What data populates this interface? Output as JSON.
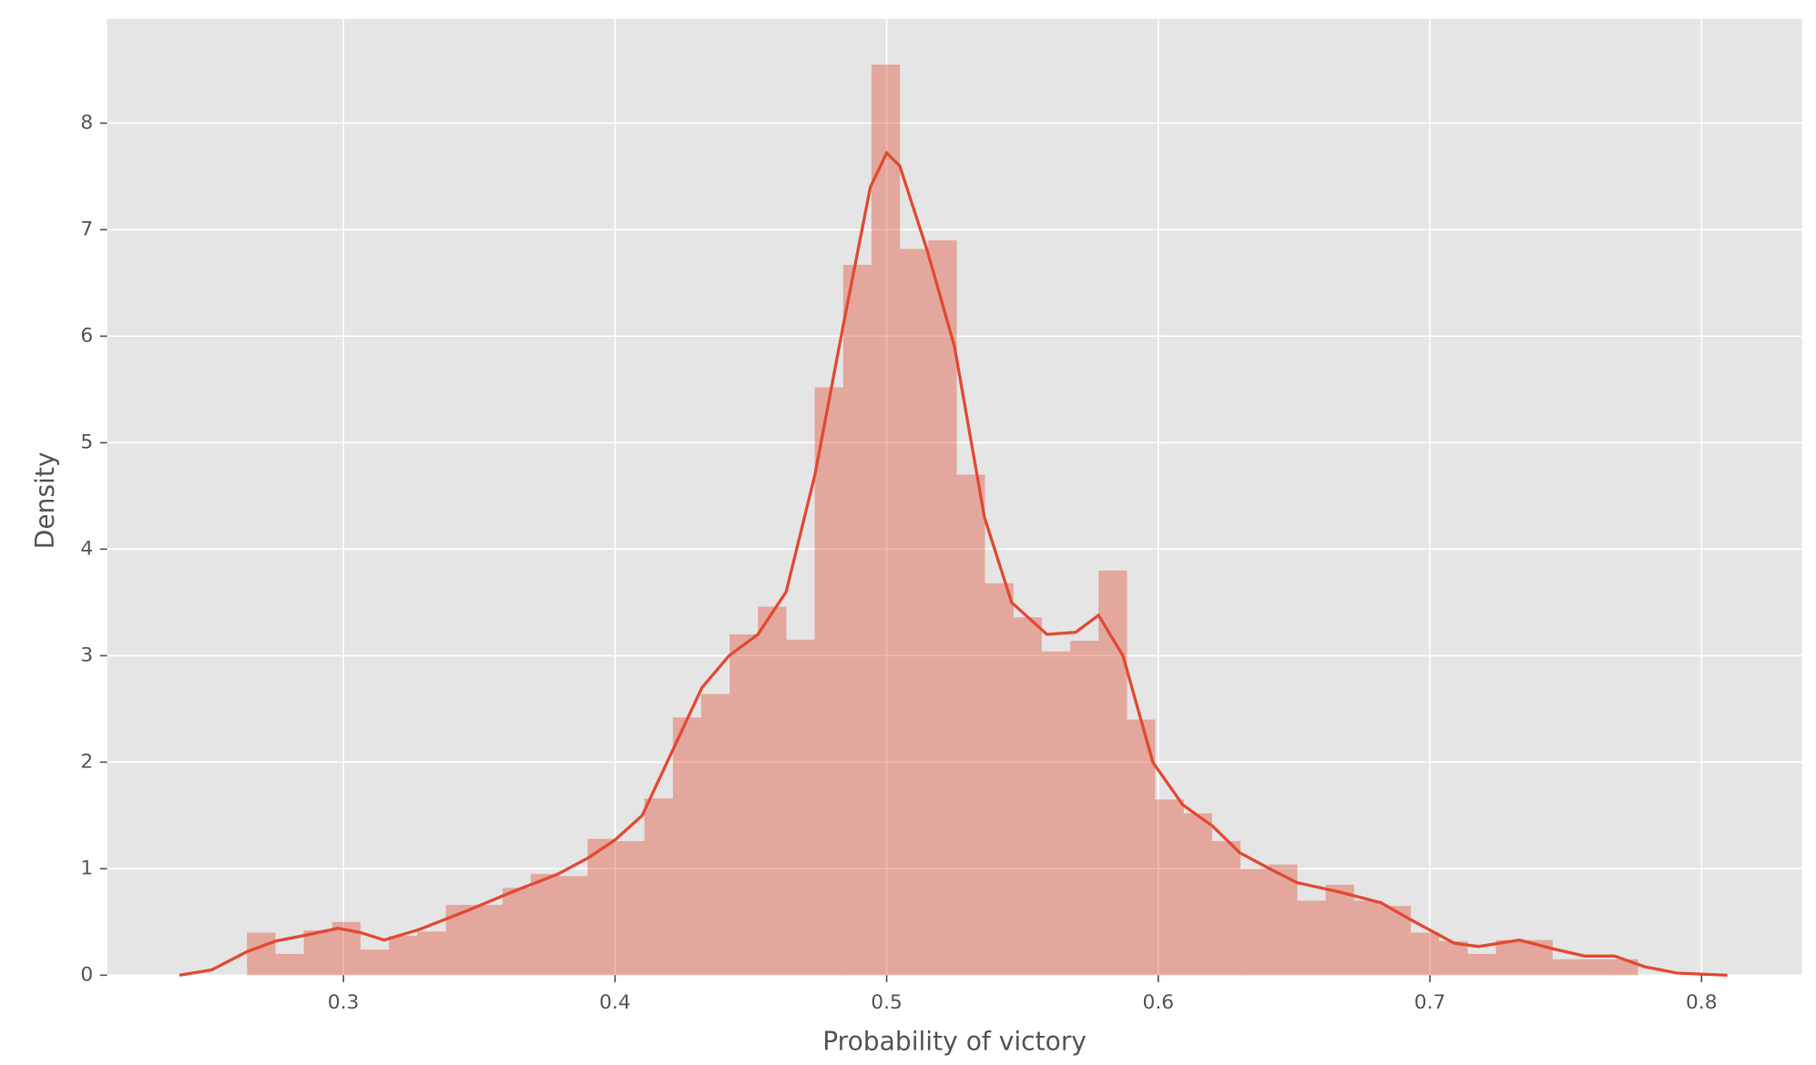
{
  "chart_data": {
    "type": "histogram",
    "xlabel": "Probability of victory",
    "ylabel": "Density",
    "color": "#e24a33",
    "grid": true,
    "xlim": [
      0.213,
      0.837
    ],
    "ylim": [
      0,
      8.98
    ],
    "xticks": [
      0.3,
      0.4,
      0.5,
      0.6,
      0.7,
      0.8
    ],
    "yticks": [
      0,
      1,
      2,
      3,
      4,
      5,
      6,
      7,
      8
    ],
    "bins": [
      0.2645,
      0.275,
      0.2854,
      0.2959,
      0.3063,
      0.3168,
      0.3272,
      0.3377,
      0.3481,
      0.3586,
      0.369,
      0.3795,
      0.3899,
      0.4004,
      0.4108,
      0.4213,
      0.4317,
      0.4422,
      0.4526,
      0.4631,
      0.4735,
      0.484,
      0.4944,
      0.5049,
      0.5153,
      0.5258,
      0.5362,
      0.5467,
      0.5571,
      0.5676,
      0.578,
      0.5885,
      0.5989,
      0.6094,
      0.6198,
      0.6303,
      0.6407,
      0.6512,
      0.6616,
      0.6721,
      0.6825,
      0.693,
      0.7034,
      0.7139,
      0.7243,
      0.7348,
      0.7452,
      0.7557,
      0.7661,
      0.7766
    ],
    "values": [
      0.4,
      0.2,
      0.42,
      0.5,
      0.24,
      0.37,
      0.41,
      0.66,
      0.66,
      0.82,
      0.95,
      0.93,
      1.28,
      1.26,
      1.66,
      2.42,
      2.64,
      3.2,
      3.46,
      3.15,
      5.52,
      6.67,
      8.55,
      6.82,
      6.9,
      4.7,
      3.68,
      3.36,
      3.04,
      3.14,
      3.8,
      2.4,
      1.65,
      1.52,
      1.26,
      1.0,
      1.04,
      0.7,
      0.85,
      0.7,
      0.65,
      0.4,
      0.32,
      0.2,
      0.33,
      0.33,
      0.15,
      0.15,
      0.15
    ],
    "kde": {
      "x": [
        0.2396,
        0.2515,
        0.2644,
        0.275,
        0.285,
        0.298,
        0.3064,
        0.315,
        0.328,
        0.345,
        0.362,
        0.379,
        0.39,
        0.4,
        0.41,
        0.421,
        0.432,
        0.442,
        0.4526,
        0.463,
        0.4736,
        0.484,
        0.494,
        0.5,
        0.5048,
        0.515,
        0.525,
        0.536,
        0.546,
        0.559,
        0.5696,
        0.578,
        0.587,
        0.598,
        0.609,
        0.62,
        0.63,
        0.641,
        0.651,
        0.667,
        0.682,
        0.693,
        0.709,
        0.718,
        0.733,
        0.745,
        0.757,
        0.768,
        0.779,
        0.791,
        0.8095
      ],
      "values": [
        0,
        0.05,
        0.22,
        0.32,
        0.37,
        0.44,
        0.4,
        0.33,
        0.43,
        0.6,
        0.78,
        0.95,
        1.1,
        1.27,
        1.5,
        2.1,
        2.7,
        3.0,
        3.2,
        3.6,
        4.7,
        6.1,
        7.4,
        7.72,
        7.6,
        6.8,
        5.9,
        4.3,
        3.5,
        3.2,
        3.22,
        3.38,
        3.0,
        2.0,
        1.6,
        1.4,
        1.15,
        1.0,
        0.87,
        0.78,
        0.68,
        0.52,
        0.3,
        0.27,
        0.33,
        0.25,
        0.18,
        0.18,
        0.08,
        0.02,
        0
      ]
    }
  }
}
